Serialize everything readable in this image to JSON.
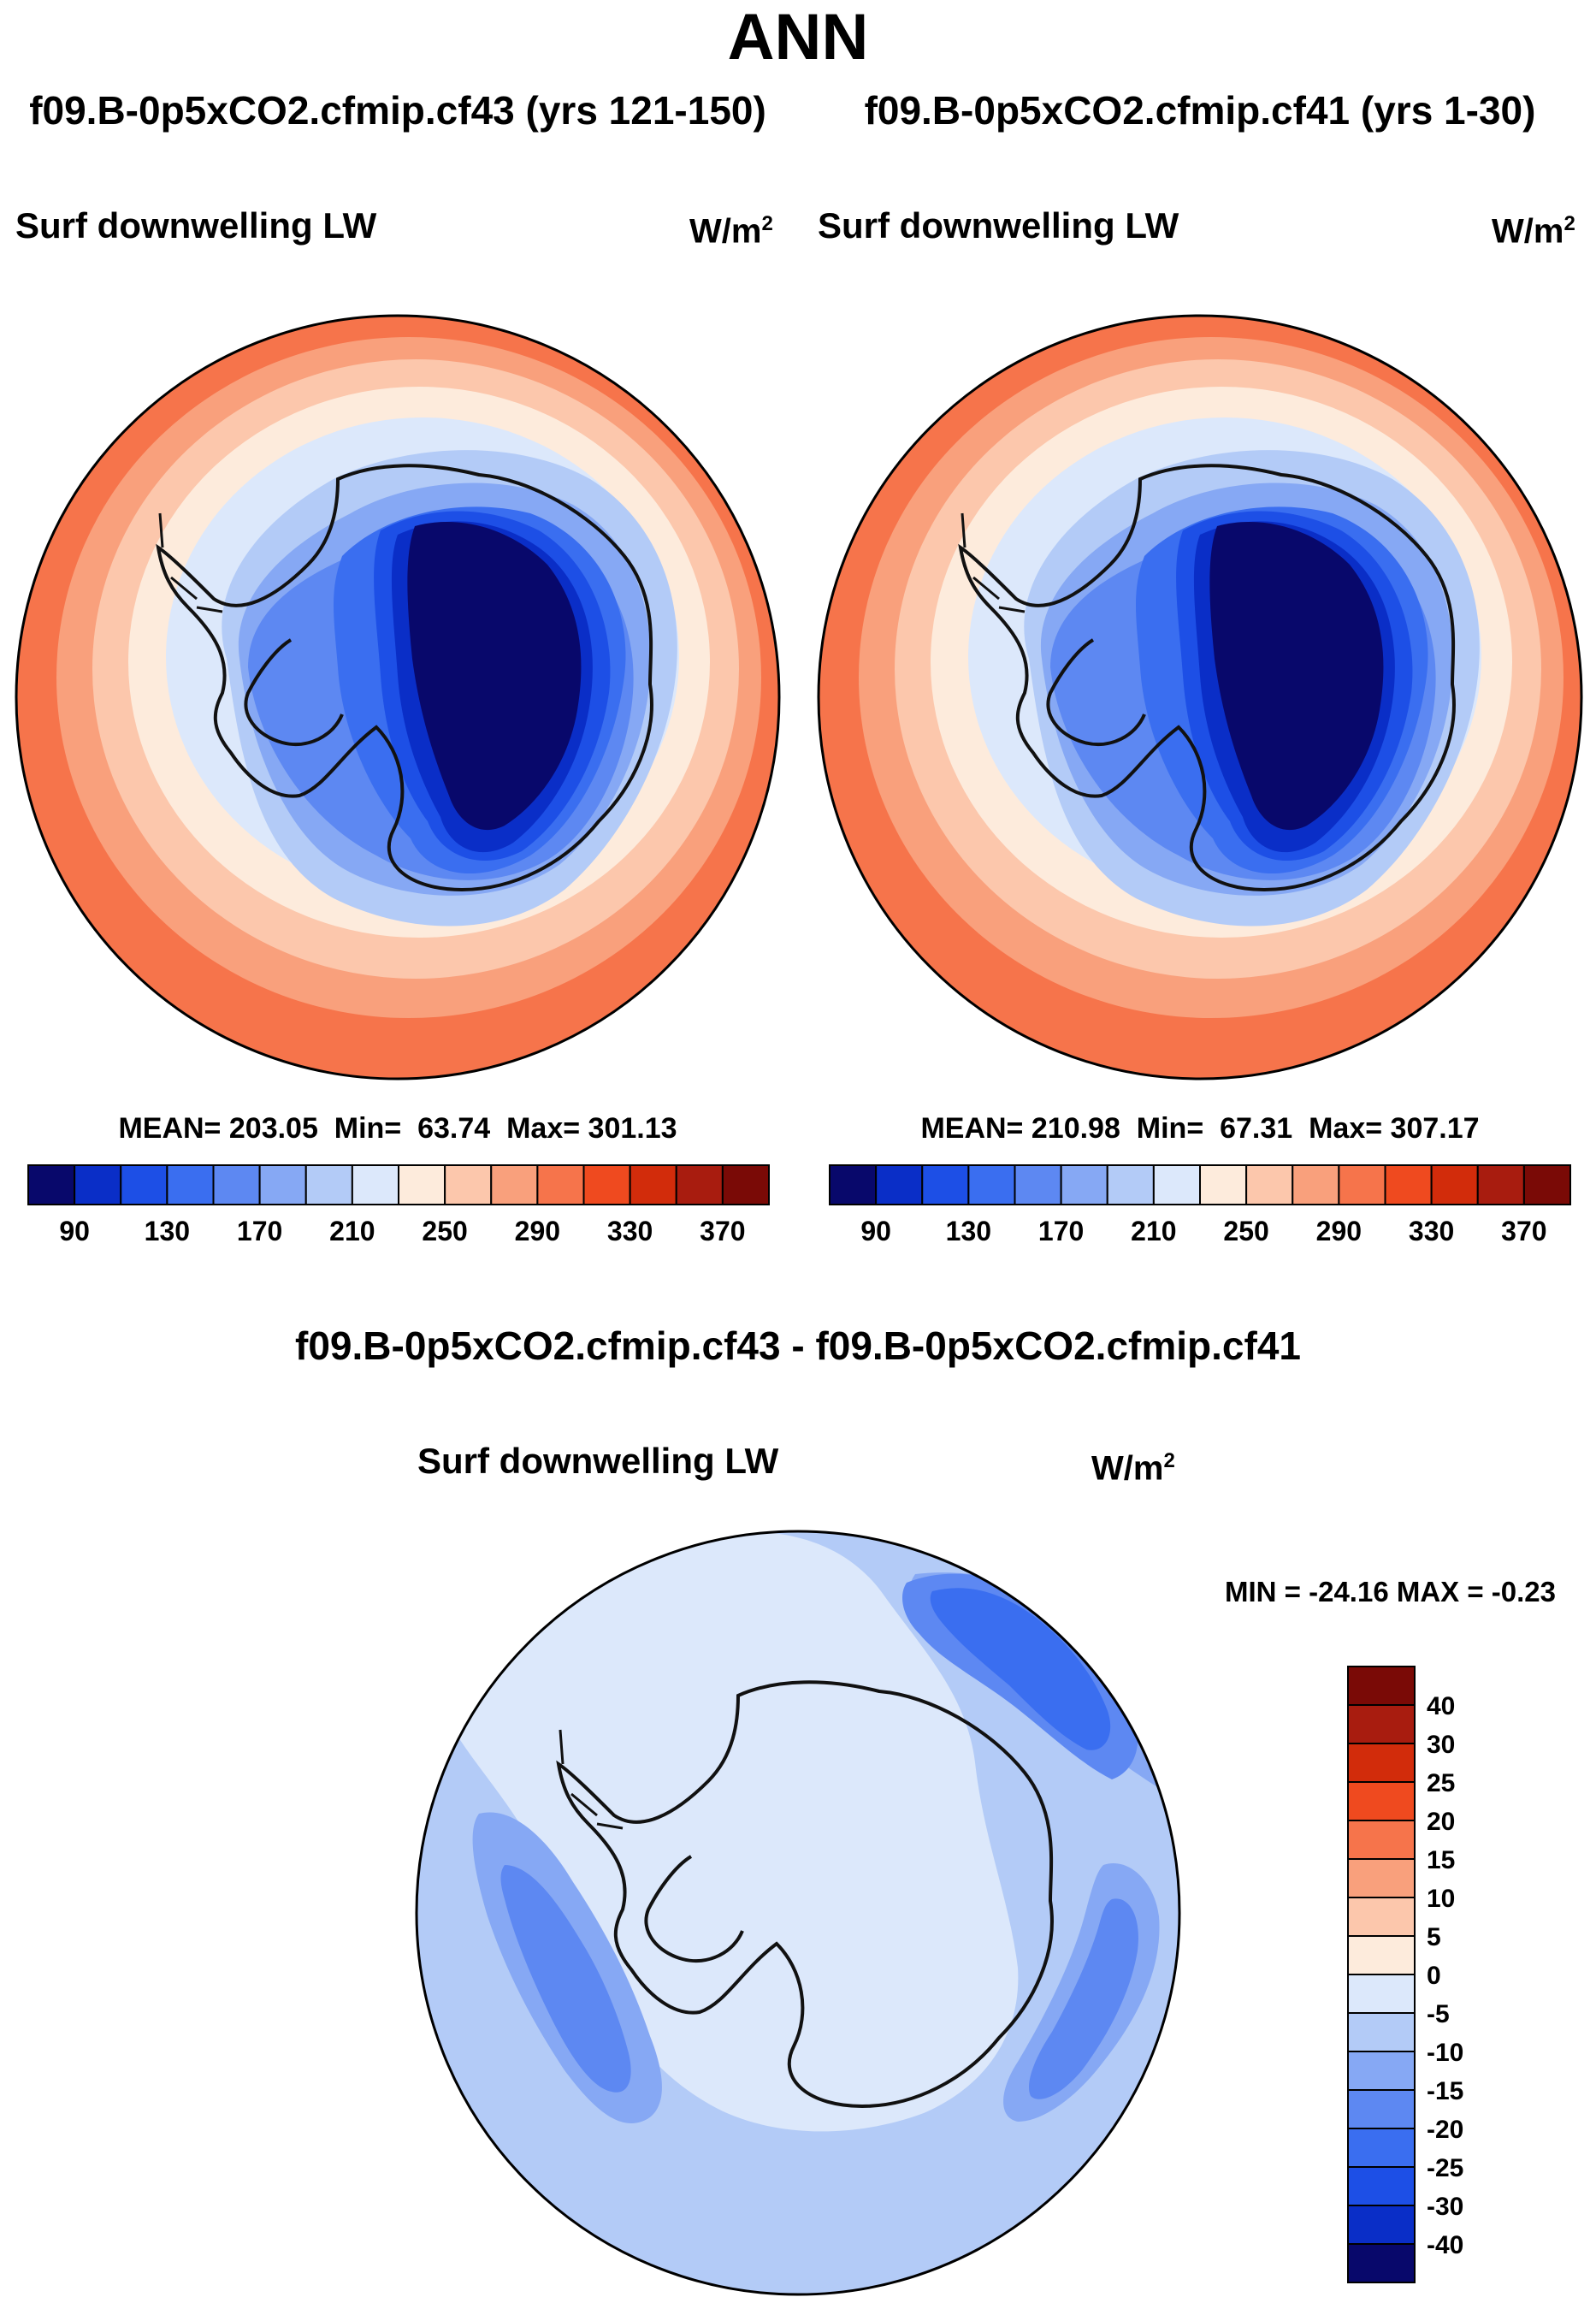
{
  "page_title": "ANN",
  "panels": [
    {
      "case_label": "f09.B-0p5xCO2.cfmip.cf43 (yrs 121-150)",
      "variable": "Surf downwelling LW",
      "units_base": "W/m",
      "units_exp": "2",
      "stats": {
        "mean_label": "MEAN=",
        "mean": "203.05",
        "min_label": "Min=",
        "min": "63.74",
        "max_label": "Max=",
        "max": "301.13"
      }
    },
    {
      "case_label": "f09.B-0p5xCO2.cfmip.cf41 (yrs 1-30)",
      "variable": "Surf downwelling LW",
      "units_base": "W/m",
      "units_exp": "2",
      "stats": {
        "mean_label": "MEAN=",
        "mean": "210.98",
        "min_label": "Min=",
        "min": "67.31",
        "max_label": "Max=",
        "max": "307.17"
      }
    }
  ],
  "diff_panel": {
    "title": "f09.B-0p5xCO2.cfmip.cf43 - f09.B-0p5xCO2.cfmip.cf41",
    "variable": "Surf downwelling LW",
    "units_base": "W/m",
    "units_exp": "2",
    "minmax_text": "MIN = -24.16 MAX =  -0.23"
  },
  "colors": {
    "outline": "#000000",
    "coast": "#111111"
  },
  "chart_data": [
    {
      "type": "contour-map",
      "projection": "south polar stereographic",
      "title": "f09.B-0p5xCO2.cfmip.cf43 (yrs 121-150)",
      "variable": "Surf downwelling LW",
      "units": "W/m2",
      "mean": 203.05,
      "min": 63.74,
      "max": 301.13,
      "colorbar": {
        "orientation": "horizontal",
        "levels": [
          80,
          90,
          110,
          130,
          150,
          170,
          190,
          210,
          230,
          250,
          270,
          290,
          310,
          330,
          350,
          370
        ],
        "tick_labels": [
          "90",
          "130",
          "170",
          "210",
          "250",
          "290",
          "330",
          "370"
        ],
        "colors": [
          "#08086b",
          "#0a2ec7",
          "#1d4fe6",
          "#3a6ef0",
          "#5d88f2",
          "#86a8f4",
          "#b3cbf7",
          "#dce8fb",
          "#fdebdc",
          "#fcc7ac",
          "#f9a07c",
          "#f6744b",
          "#ef4a1f",
          "#d22c0b",
          "#a81c0f",
          "#7a0a06"
        ]
      }
    },
    {
      "type": "contour-map",
      "projection": "south polar stereographic",
      "title": "f09.B-0p5xCO2.cfmip.cf41 (yrs 1-30)",
      "variable": "Surf downwelling LW",
      "units": "W/m2",
      "mean": 210.98,
      "min": 67.31,
      "max": 307.17,
      "colorbar": {
        "orientation": "horizontal",
        "levels": [
          80,
          90,
          110,
          130,
          150,
          170,
          190,
          210,
          230,
          250,
          270,
          290,
          310,
          330,
          350,
          370
        ],
        "tick_labels": [
          "90",
          "130",
          "170",
          "210",
          "250",
          "290",
          "330",
          "370"
        ],
        "colors": [
          "#08086b",
          "#0a2ec7",
          "#1d4fe6",
          "#3a6ef0",
          "#5d88f2",
          "#86a8f4",
          "#b3cbf7",
          "#dce8fb",
          "#fdebdc",
          "#fcc7ac",
          "#f9a07c",
          "#f6744b",
          "#ef4a1f",
          "#d22c0b",
          "#a81c0f",
          "#7a0a06"
        ]
      }
    },
    {
      "type": "contour-map",
      "projection": "south polar stereographic",
      "title": "f09.B-0p5xCO2.cfmip.cf43 - f09.B-0p5xCO2.cfmip.cf41",
      "variable": "Surf downwelling LW",
      "units": "W/m2",
      "min": -24.16,
      "max": -0.23,
      "colorbar": {
        "orientation": "vertical",
        "tick_labels": [
          "40",
          "30",
          "25",
          "20",
          "15",
          "10",
          "5",
          "0",
          "-5",
          "-10",
          "-15",
          "-20",
          "-25",
          "-30",
          "-40"
        ],
        "colors": [
          "#7a0a06",
          "#a81c0f",
          "#d22c0b",
          "#ef4a1f",
          "#f6744b",
          "#f9a07c",
          "#fcc7ac",
          "#fdebdc",
          "#dce8fb",
          "#b3cbf7",
          "#86a8f4",
          "#5d88f2",
          "#3a6ef0",
          "#1d4fe6",
          "#0a2ec7",
          "#08086b"
        ]
      }
    }
  ]
}
